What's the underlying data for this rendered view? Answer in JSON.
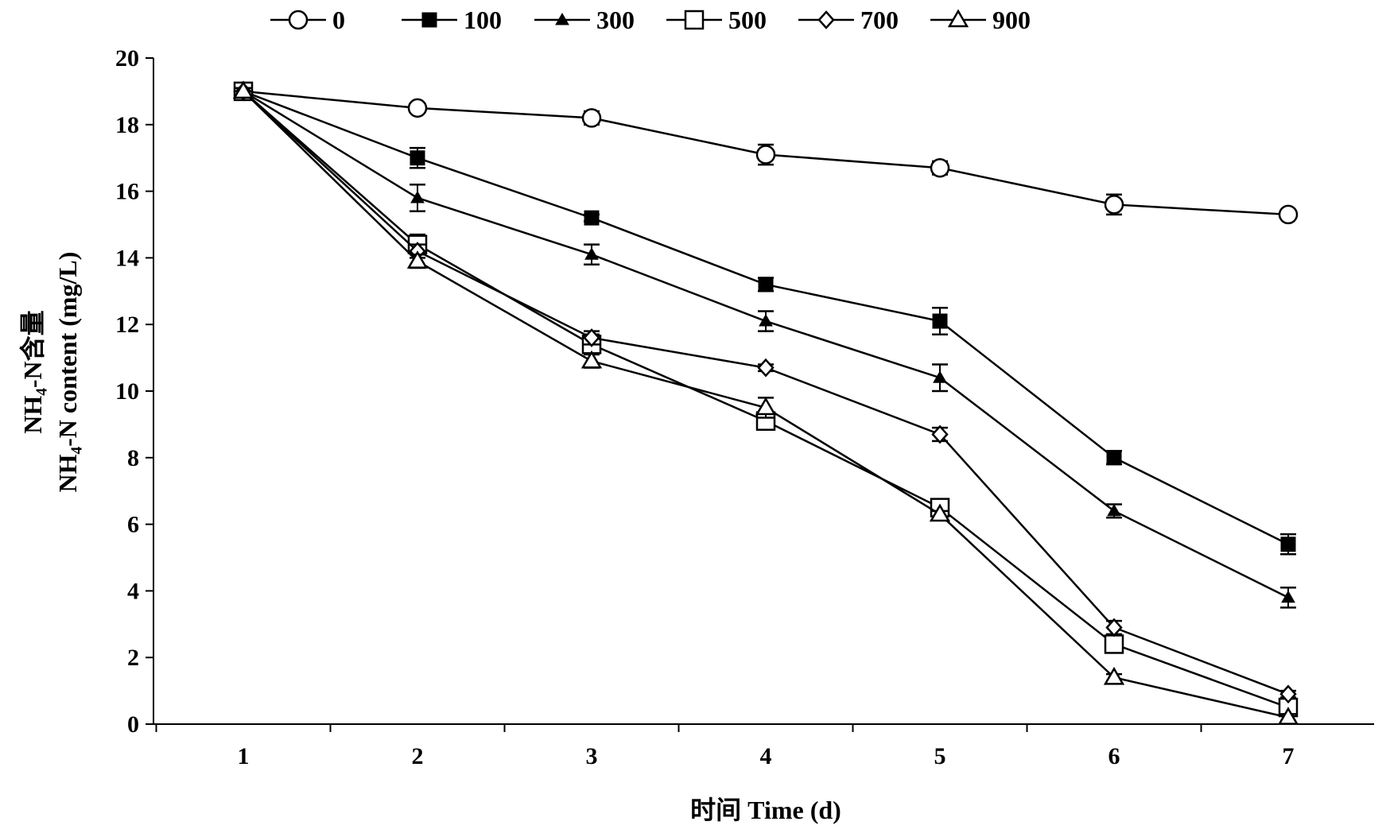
{
  "chart_data": {
    "type": "line",
    "xlabel": "时间 Time (d)",
    "ylabel_line1": "NH₄-N含量",
    "ylabel_line2": "NH₄-N content (mg/L)",
    "x": [
      1,
      2,
      3,
      4,
      5,
      6,
      7
    ],
    "xlim": [
      0.5,
      7.5
    ],
    "ylim": [
      0,
      20
    ],
    "y_ticks": [
      0,
      2,
      4,
      6,
      8,
      10,
      12,
      14,
      16,
      18,
      20
    ],
    "grid": false,
    "legend_position": "top",
    "series": [
      {
        "name": "0",
        "marker": "circle-open",
        "values": [
          19.0,
          18.5,
          18.2,
          17.1,
          16.7,
          15.6,
          15.3
        ],
        "errors": [
          0.1,
          0.1,
          0.2,
          0.3,
          0.2,
          0.3,
          0.1
        ]
      },
      {
        "name": "100",
        "marker": "square-filled",
        "values": [
          19.0,
          17.0,
          15.2,
          13.2,
          12.1,
          8.0,
          5.4
        ],
        "errors": [
          0.1,
          0.3,
          0.1,
          0.2,
          0.4,
          0.2,
          0.3
        ]
      },
      {
        "name": "300",
        "marker": "triangle-filled-small",
        "values": [
          19.0,
          15.8,
          14.1,
          12.1,
          10.4,
          6.4,
          3.8
        ],
        "errors": [
          0.1,
          0.4,
          0.3,
          0.3,
          0.4,
          0.2,
          0.3
        ]
      },
      {
        "name": "500",
        "marker": "square-open",
        "values": [
          19.0,
          14.4,
          11.4,
          9.1,
          6.5,
          2.4,
          0.5
        ],
        "errors": [
          0.1,
          0.3,
          0.3,
          0.2,
          0.1,
          0.2,
          0.1
        ]
      },
      {
        "name": "700",
        "marker": "diamond-open",
        "values": [
          19.0,
          14.2,
          11.6,
          10.7,
          8.7,
          2.9,
          0.9
        ],
        "errors": [
          0.1,
          0.2,
          0.2,
          0.1,
          0.2,
          0.2,
          0.1
        ]
      },
      {
        "name": "900",
        "marker": "triangle-open",
        "values": [
          19.0,
          13.9,
          10.9,
          9.5,
          6.3,
          1.4,
          0.2
        ],
        "errors": [
          0.1,
          0.2,
          0.2,
          0.3,
          0.1,
          0.1,
          0.1
        ]
      }
    ]
  }
}
